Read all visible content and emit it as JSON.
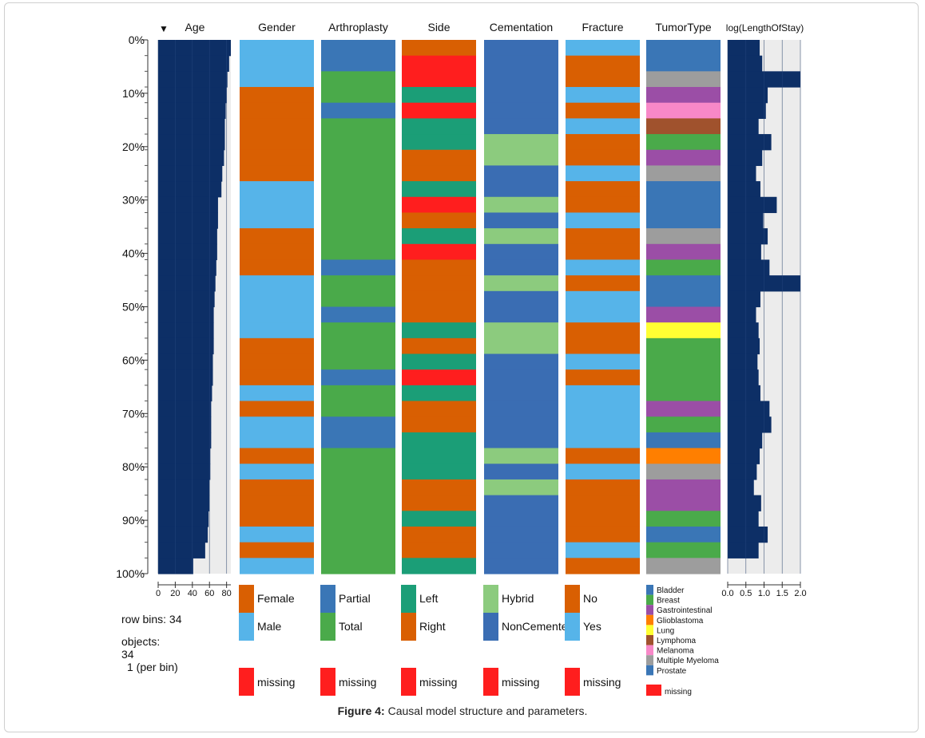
{
  "caption": {
    "label": "Figure 4:",
    "text": "Causal model structure and parameters."
  },
  "info": {
    "row_bins_label": "row bins:",
    "row_bins_value": "34",
    "objects_label": "objects:",
    "objects_value": "34",
    "per_bin": "1 (per bin)"
  },
  "colors": {
    "female": "#d95f02",
    "male": "#56b4e9",
    "partial": "#3a76b6",
    "total": "#4aaa4a",
    "left": "#1b9e77",
    "right": "#d95f02",
    "hybrid": "#8ccb7e",
    "noncemented": "#3a6db3",
    "no": "#d95f02",
    "yes": "#56b4e9",
    "missing": "#ff1e1e",
    "bar": "#0d2f66",
    "bar_bg": "#ececec",
    "grid": "#bdbdbd",
    "bladder": "#3a76b6",
    "breast": "#4aaa4a",
    "gastrointestinal": "#9b4ea6",
    "glioblastoma": "#ff7f00",
    "lung": "#ffff33",
    "lymphoma": "#a0522d",
    "melanoma": "#f888c8",
    "multiple_myeloma": "#9d9d9d",
    "prostate": "#3a76b6"
  },
  "chart_data": {
    "type": "table",
    "title": "Causal model structure and parameters",
    "n_rows": 34,
    "row_axis": {
      "ticks": [
        "0%",
        "10%",
        "20%",
        "30%",
        "40%",
        "50%",
        "60%",
        "70%",
        "80%",
        "90%",
        "100%"
      ]
    },
    "sort_indicator": "▼",
    "columns": [
      {
        "name": "Age",
        "kind": "bar",
        "sorted": true,
        "xlim": [
          0,
          85
        ],
        "ticks": [
          "0",
          "20",
          "40",
          "60",
          "80"
        ],
        "tick_values": [
          0,
          20,
          40,
          60,
          80
        ],
        "values": [
          85,
          83,
          81,
          80,
          79,
          78,
          78,
          77,
          75,
          74,
          70,
          70,
          69,
          69,
          68,
          67,
          66,
          65,
          65,
          65,
          64,
          64,
          63,
          62,
          62,
          62,
          61,
          61,
          60,
          60,
          59,
          58,
          55,
          41
        ]
      },
      {
        "name": "Gender",
        "kind": "category",
        "legend": [
          {
            "label": "Female",
            "key": "female"
          },
          {
            "label": "Male",
            "key": "male"
          }
        ],
        "values": [
          "Male",
          "Male",
          "Male",
          "Female",
          "Female",
          "Female",
          "Female",
          "Female",
          "Female",
          "Male",
          "Male",
          "Male",
          "Female",
          "Female",
          "Female",
          "Male",
          "Male",
          "Male",
          "Male",
          "Female",
          "Female",
          "Female",
          "Male",
          "Female",
          "Male",
          "Male",
          "Female",
          "Male",
          "Female",
          "Female",
          "Female",
          "Male",
          "Female",
          "Male"
        ]
      },
      {
        "name": "Arthroplasty",
        "kind": "category",
        "legend": [
          {
            "label": "Partial",
            "key": "partial"
          },
          {
            "label": "Total",
            "key": "total"
          }
        ],
        "values": [
          "Partial",
          "Partial",
          "Total",
          "Total",
          "Partial",
          "Total",
          "Total",
          "Total",
          "Total",
          "Total",
          "Total",
          "Total",
          "Total",
          "Total",
          "Partial",
          "Total",
          "Total",
          "Partial",
          "Total",
          "Total",
          "Total",
          "Partial",
          "Total",
          "Total",
          "Partial",
          "Partial",
          "Total",
          "Total",
          "Total",
          "Total",
          "Total",
          "Total",
          "Total",
          "Total"
        ]
      },
      {
        "name": "Side",
        "kind": "category",
        "legend": [
          {
            "label": "Left",
            "key": "left"
          },
          {
            "label": "Right",
            "key": "right"
          }
        ],
        "values": [
          "Right",
          "missing",
          "missing",
          "Left",
          "missing",
          "Left",
          "Left",
          "Right",
          "Right",
          "Left",
          "missing",
          "Right",
          "Left",
          "missing",
          "Right",
          "Right",
          "Right",
          "Right",
          "Left",
          "Right",
          "Left",
          "missing",
          "Left",
          "Right",
          "Right",
          "Left",
          "Left",
          "Left",
          "Right",
          "Right",
          "Left",
          "Right",
          "Right",
          "Left"
        ]
      },
      {
        "name": "Cementation",
        "kind": "category",
        "legend": [
          {
            "label": "Hybrid",
            "key": "hybrid"
          },
          {
            "label": "NonCemente",
            "key": "noncemented"
          }
        ],
        "values": [
          "NonCemented",
          "NonCemented",
          "NonCemented",
          "NonCemented",
          "NonCemented",
          "NonCemented",
          "Hybrid",
          "Hybrid",
          "NonCemented",
          "NonCemented",
          "Hybrid",
          "NonCemented",
          "Hybrid",
          "NonCemented",
          "NonCemented",
          "Hybrid",
          "NonCemented",
          "NonCemented",
          "Hybrid",
          "Hybrid",
          "NonCemented",
          "NonCemented",
          "NonCemented",
          "NonCemented",
          "NonCemented",
          "NonCemented",
          "Hybrid",
          "NonCemented",
          "Hybrid",
          "NonCemented",
          "NonCemented",
          "NonCemented",
          "NonCemented",
          "NonCemented"
        ]
      },
      {
        "name": "Fracture",
        "kind": "category",
        "legend": [
          {
            "label": "No",
            "key": "no"
          },
          {
            "label": "Yes",
            "key": "yes"
          }
        ],
        "values": [
          "Yes",
          "No",
          "No",
          "Yes",
          "No",
          "Yes",
          "No",
          "No",
          "Yes",
          "No",
          "No",
          "Yes",
          "No",
          "No",
          "Yes",
          "No",
          "Yes",
          "Yes",
          "No",
          "No",
          "Yes",
          "No",
          "Yes",
          "Yes",
          "Yes",
          "Yes",
          "No",
          "Yes",
          "No",
          "No",
          "No",
          "No",
          "Yes",
          "No"
        ]
      },
      {
        "name": "TumorType",
        "kind": "category",
        "legend": [
          {
            "label": "Bladder",
            "key": "bladder"
          },
          {
            "label": "Breast",
            "key": "breast"
          },
          {
            "label": "Gastrointestinal",
            "key": "gastrointestinal"
          },
          {
            "label": "Glioblastoma",
            "key": "glioblastoma"
          },
          {
            "label": "Lung",
            "key": "lung"
          },
          {
            "label": "Lymphoma",
            "key": "lymphoma"
          },
          {
            "label": "Melanoma",
            "key": "melanoma"
          },
          {
            "label": "Multiple Myeloma",
            "key": "multiple_myeloma"
          },
          {
            "label": "Prostate",
            "key": "prostate"
          }
        ],
        "values": [
          "Bladder",
          "Bladder",
          "Multiple Myeloma",
          "Gastrointestinal",
          "Melanoma",
          "Lymphoma",
          "Breast",
          "Gastrointestinal",
          "Multiple Myeloma",
          "Bladder",
          "Bladder",
          "Bladder",
          "Multiple Myeloma",
          "Gastrointestinal",
          "Breast",
          "Bladder",
          "Bladder",
          "Gastrointestinal",
          "Lung",
          "Breast",
          "Breast",
          "Breast",
          "Breast",
          "Gastrointestinal",
          "Breast",
          "Bladder",
          "Glioblastoma",
          "Multiple Myeloma",
          "Gastrointestinal",
          "Gastrointestinal",
          "Breast",
          "Bladder",
          "Breast",
          "Multiple Myeloma"
        ]
      },
      {
        "name": "log(LengthOfStay)",
        "kind": "bar",
        "xlim": [
          0,
          2.0
        ],
        "ticks": [
          "0.0",
          "0.5",
          "1.0",
          "1.5",
          "2.0"
        ],
        "tick_values": [
          0,
          0.5,
          1.0,
          1.5,
          2.0
        ],
        "values": [
          0.88,
          0.95,
          2.0,
          1.1,
          1.05,
          0.85,
          1.2,
          0.95,
          0.78,
          0.9,
          1.35,
          0.98,
          1.1,
          0.92,
          1.15,
          2.05,
          0.9,
          0.78,
          0.85,
          0.88,
          0.82,
          0.85,
          0.9,
          1.15,
          1.2,
          0.95,
          0.88,
          0.8,
          0.72,
          0.92,
          0.85,
          1.1,
          0.85,
          0.0
        ]
      }
    ],
    "missing_label": "missing"
  }
}
